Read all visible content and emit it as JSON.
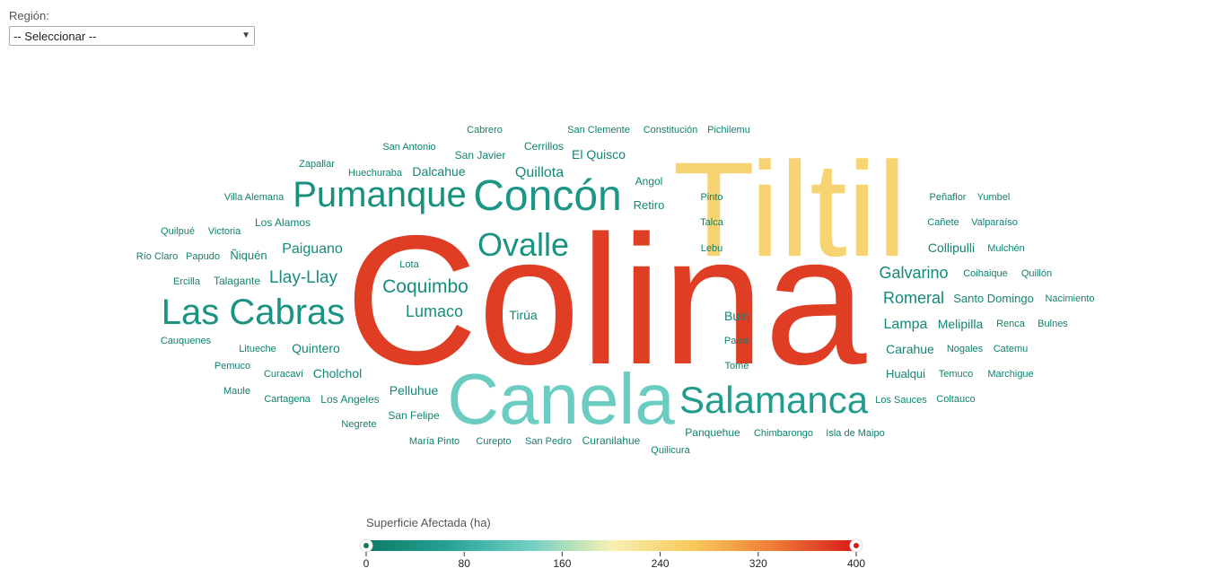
{
  "filter": {
    "label": "Región:",
    "selected": "-- Seleccionar --"
  },
  "chart_data": {
    "type": "wordcloud",
    "legend": {
      "title": "Superficie Afectada (ha)",
      "min": 0,
      "max": 400,
      "ticks": [
        "0",
        "80",
        "160",
        "240",
        "320",
        "400"
      ],
      "colors": [
        "#0b7a64",
        "#26a396",
        "#6fcfc3",
        "#f7f0b4",
        "#f8c95a",
        "#ef7a35",
        "#d7191c"
      ]
    },
    "words": [
      {
        "text": "Colina",
        "value": 375
      },
      {
        "text": "Tiltil",
        "value": 250
      },
      {
        "text": "Canela",
        "value": 130
      },
      {
        "text": "Salamanca",
        "value": 55
      },
      {
        "text": "Concón",
        "value": 45
      },
      {
        "text": "Pumanque",
        "value": 35
      },
      {
        "text": "Las Cabras",
        "value": 40
      },
      {
        "text": "Ovalle",
        "value": 40
      },
      {
        "text": "Coquimbo",
        "value": 30
      },
      {
        "text": "Llay-Llay",
        "value": 30
      },
      {
        "text": "Lumaco",
        "value": 30
      },
      {
        "text": "Paiguano",
        "value": 28
      },
      {
        "text": "Galvarino",
        "value": 25
      },
      {
        "text": "Romeral",
        "value": 25
      },
      {
        "text": "Lampa",
        "value": 25
      },
      {
        "text": "Quillota",
        "value": 25
      },
      {
        "text": "Tirúa",
        "value": 20
      },
      {
        "text": "Buin",
        "value": 20
      },
      {
        "text": "Quintero",
        "value": 20
      },
      {
        "text": "Cholchol",
        "value": 20
      },
      {
        "text": "Melipilla",
        "value": 20
      },
      {
        "text": "Carahue",
        "value": 20
      },
      {
        "text": "Hualqui",
        "value": 20
      },
      {
        "text": "Santo Domingo",
        "value": 20
      },
      {
        "text": "Collipulli",
        "value": 20
      },
      {
        "text": "Pelluhue",
        "value": 20
      },
      {
        "text": "Dalcahue",
        "value": 18
      },
      {
        "text": "El Quisco",
        "value": 18
      },
      {
        "text": "Retiro",
        "value": 18
      },
      {
        "text": "Angol",
        "value": 15
      },
      {
        "text": "Cerrillos",
        "value": 15
      },
      {
        "text": "San Javier",
        "value": 15
      },
      {
        "text": "Los Angeles",
        "value": 15
      },
      {
        "text": "San Felipe",
        "value": 15
      },
      {
        "text": "Curanilahue",
        "value": 15
      },
      {
        "text": "Los Alamos",
        "value": 15
      },
      {
        "text": "Ñiquén",
        "value": 15
      },
      {
        "text": "Talagante",
        "value": 15
      },
      {
        "text": "Victoria",
        "value": 12
      },
      {
        "text": "Litueche",
        "value": 12
      },
      {
        "text": "Curacaví",
        "value": 12
      },
      {
        "text": "Cartagena",
        "value": 12
      },
      {
        "text": "Huechuraba",
        "value": 12
      },
      {
        "text": "San Antonio",
        "value": 12
      },
      {
        "text": "Zapallar",
        "value": 12
      },
      {
        "text": "Villa Alemana",
        "value": 12
      },
      {
        "text": "Quilpué",
        "value": 12
      },
      {
        "text": "Papudo",
        "value": 12
      },
      {
        "text": "Río Claro",
        "value": 12
      },
      {
        "text": "Ercilla",
        "value": 12
      },
      {
        "text": "Cauquenes",
        "value": 12
      },
      {
        "text": "Pemuco",
        "value": 12
      },
      {
        "text": "Maule",
        "value": 12
      },
      {
        "text": "Negrete",
        "value": 12
      },
      {
        "text": "María Pinto",
        "value": 12
      },
      {
        "text": "Curepto",
        "value": 12
      },
      {
        "text": "San Pedro",
        "value": 12
      },
      {
        "text": "Quilicura",
        "value": 12
      },
      {
        "text": "Panquehue",
        "value": 12
      },
      {
        "text": "Chimbarongo",
        "value": 12
      },
      {
        "text": "Isla de Maipo",
        "value": 12
      },
      {
        "text": "Los Sauces",
        "value": 12
      },
      {
        "text": "Coltauco",
        "value": 12
      },
      {
        "text": "Temuco",
        "value": 12
      },
      {
        "text": "Marchigue",
        "value": 12
      },
      {
        "text": "Nogales",
        "value": 12
      },
      {
        "text": "Catemu",
        "value": 12
      },
      {
        "text": "Renca",
        "value": 12
      },
      {
        "text": "Bulnes",
        "value": 12
      },
      {
        "text": "Nacimiento",
        "value": 12
      },
      {
        "text": "Quillón",
        "value": 12
      },
      {
        "text": "Coihaique",
        "value": 12
      },
      {
        "text": "Mulchén",
        "value": 12
      },
      {
        "text": "Valparaíso",
        "value": 12
      },
      {
        "text": "Cañete",
        "value": 12
      },
      {
        "text": "Yumbel",
        "value": 12
      },
      {
        "text": "Peñaflor",
        "value": 12
      },
      {
        "text": "Pichilemu",
        "value": 12
      },
      {
        "text": "Constitución",
        "value": 12
      },
      {
        "text": "San Clemente",
        "value": 12
      },
      {
        "text": "Cabrero",
        "value": 12
      },
      {
        "text": "Pinto",
        "value": 12
      },
      {
        "text": "Talca",
        "value": 12
      },
      {
        "text": "Lebu",
        "value": 12
      },
      {
        "text": "Lota",
        "value": 12
      },
      {
        "text": "Paine",
        "value": 12
      },
      {
        "text": "Tomé",
        "value": 12
      }
    ]
  }
}
